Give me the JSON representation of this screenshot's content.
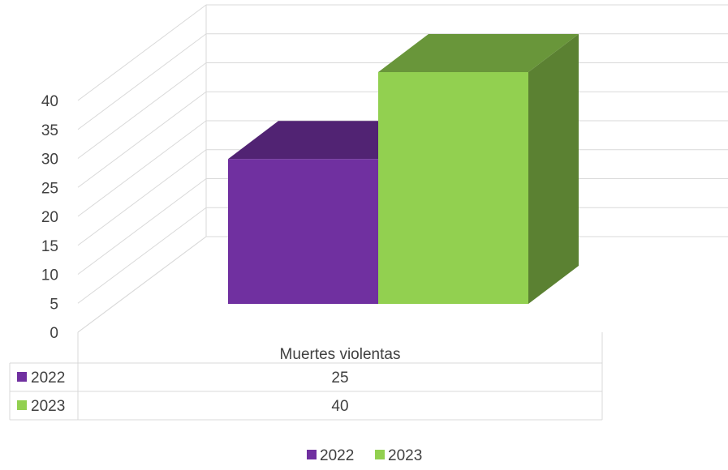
{
  "chart_data": {
    "type": "bar",
    "style": "3d-clustered-column-with-data-table",
    "title": "",
    "xlabel": "",
    "ylabel": "",
    "categories": [
      "Muertes violentas"
    ],
    "series": [
      {
        "name": "2022",
        "values": [
          25
        ],
        "color": "#7030A0"
      },
      {
        "name": "2023",
        "values": [
          40
        ],
        "color": "#92D050"
      }
    ],
    "ylim": [
      0,
      40
    ],
    "yticks": [
      0,
      5,
      10,
      15,
      20,
      25,
      30,
      35,
      40
    ],
    "grid": true,
    "legend": "bottom",
    "data_table": true
  }
}
